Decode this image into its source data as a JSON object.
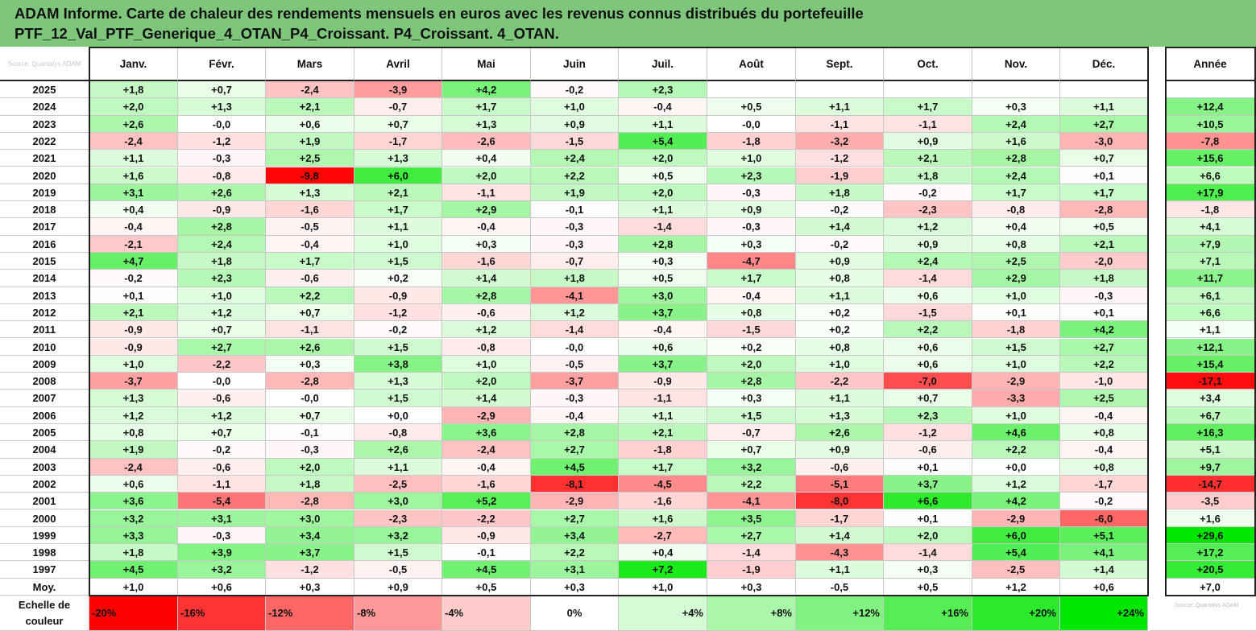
{
  "title": {
    "line1": "ADAM Informe. Carte de chaleur des rendements mensuels en euros avec les revenus connus distribués du portefeuille",
    "line2": "PTF_12_Val_PTF_Generique_4_OTAN_P4_Croissant. P4_Croissant. 4_OTAN."
  },
  "corner_text": "Source: Quantalys ADAM",
  "colors": {
    "title_bg": "#7dc67c",
    "negative": "#ff0000",
    "positive": "#00ff00",
    "neutral": "#ffffff"
  },
  "chart_data": {
    "type": "heatmap",
    "months": [
      "Janv.",
      "Févr.",
      "Mars",
      "Avril",
      "Mai",
      "Juin",
      "Juil.",
      "Août",
      "Sept.",
      "Oct.",
      "Nov.",
      "Déc."
    ],
    "annual_label": "Année",
    "rows": [
      {
        "year": "2025",
        "values": [
          "+1,8",
          "+0,7",
          "-2,4",
          "-3,9",
          "+4,2",
          "-0,2",
          "+2,3",
          "",
          "",
          "",
          "",
          ""
        ],
        "annual": ""
      },
      {
        "year": "2024",
        "values": [
          "+2,0",
          "+1,3",
          "+2,1",
          "-0,7",
          "+1,7",
          "+1,0",
          "-0,4",
          "+0,5",
          "+1,1",
          "+1,7",
          "+0,3",
          "+1,1"
        ],
        "annual": "+12,4"
      },
      {
        "year": "2023",
        "values": [
          "+2,6",
          "-0,0",
          "+0,6",
          "+0,7",
          "+1,3",
          "+0,9",
          "+1,1",
          "-0,0",
          "-1,1",
          "-1,1",
          "+2,4",
          "+2,7"
        ],
        "annual": "+10,5"
      },
      {
        "year": "2022",
        "values": [
          "-2,4",
          "-1,2",
          "+1,9",
          "-1,7",
          "-2,6",
          "-1,5",
          "+5,4",
          "-1,8",
          "-3,2",
          "+0,9",
          "+1,6",
          "-3,0"
        ],
        "annual": "-7,8"
      },
      {
        "year": "2021",
        "values": [
          "+1,1",
          "-0,3",
          "+2,5",
          "+1,3",
          "+0,4",
          "+2,4",
          "+2,0",
          "+1,0",
          "-1,2",
          "+2,1",
          "+2,8",
          "+0,7"
        ],
        "annual": "+15,6"
      },
      {
        "year": "2020",
        "values": [
          "+1,6",
          "-0,8",
          "-9,8",
          "+6,0",
          "+2,0",
          "+2,2",
          "+0,5",
          "+2,3",
          "-1,9",
          "+1,8",
          "+2,4",
          "+0,1"
        ],
        "annual": "+6,6"
      },
      {
        "year": "2019",
        "values": [
          "+3,1",
          "+2,6",
          "+1,3",
          "+2,1",
          "-1,1",
          "+1,9",
          "+2,0",
          "-0,3",
          "+1,8",
          "-0,2",
          "+1,7",
          "+1,7"
        ],
        "annual": "+17,9"
      },
      {
        "year": "2018",
        "values": [
          "+0,4",
          "-0,9",
          "-1,6",
          "+1,7",
          "+2,9",
          "-0,1",
          "+1,1",
          "+0,9",
          "-0,2",
          "-2,3",
          "-0,8",
          "-2,8"
        ],
        "annual": "-1,8"
      },
      {
        "year": "2017",
        "values": [
          "-0,4",
          "+2,8",
          "-0,5",
          "+1,1",
          "-0,4",
          "-0,3",
          "-1,4",
          "-0,3",
          "+1,4",
          "+1,2",
          "+0,4",
          "+0,5"
        ],
        "annual": "+4,1"
      },
      {
        "year": "2016",
        "values": [
          "-2,1",
          "+2,4",
          "-0,4",
          "+1,0",
          "+0,3",
          "-0,3",
          "+2,8",
          "+0,3",
          "-0,2",
          "+0,9",
          "+0,8",
          "+2,1"
        ],
        "annual": "+7,9"
      },
      {
        "year": "2015",
        "values": [
          "+4,7",
          "+1,8",
          "+1,7",
          "+1,5",
          "-1,6",
          "-0,7",
          "+0,3",
          "-4,7",
          "+0,9",
          "+2,4",
          "+2,5",
          "-2,0"
        ],
        "annual": "+7,1"
      },
      {
        "year": "2014",
        "values": [
          "-0,2",
          "+2,3",
          "-0,6",
          "+0,2",
          "+1,4",
          "+1,8",
          "+0,5",
          "+1,7",
          "+0,8",
          "-1,4",
          "+2,9",
          "+1,8"
        ],
        "annual": "+11,7"
      },
      {
        "year": "2013",
        "values": [
          "+0,1",
          "+1,0",
          "+2,2",
          "-0,9",
          "+2,8",
          "-4,1",
          "+3,0",
          "-0,4",
          "+1,1",
          "+0,6",
          "+1,0",
          "-0,3"
        ],
        "annual": "+6,1"
      },
      {
        "year": "2012",
        "values": [
          "+2,1",
          "+1,2",
          "+0,7",
          "-1,2",
          "-0,6",
          "+1,2",
          "+3,7",
          "+0,8",
          "+0,2",
          "-1,5",
          "+0,1",
          "+0,1"
        ],
        "annual": "+6,6"
      },
      {
        "year": "2011",
        "values": [
          "-0,9",
          "+0,7",
          "-1,1",
          "-0,2",
          "+1,2",
          "-1,4",
          "-0,4",
          "-1,5",
          "+0,2",
          "+2,2",
          "-1,8",
          "+4,2"
        ],
        "annual": "+1,1"
      },
      {
        "year": "2010",
        "values": [
          "-0,9",
          "+2,7",
          "+2,6",
          "+1,5",
          "-0,8",
          "-0,0",
          "+0,6",
          "+0,2",
          "+0,8",
          "+0,6",
          "+1,5",
          "+2,7"
        ],
        "annual": "+12,1"
      },
      {
        "year": "2009",
        "values": [
          "+1,0",
          "-2,2",
          "+0,3",
          "+3,8",
          "+1,0",
          "-0,5",
          "+3,7",
          "+2,0",
          "+1,0",
          "+0,6",
          "+1,0",
          "+2,2"
        ],
        "annual": "+15,4"
      },
      {
        "year": "2008",
        "values": [
          "-3,7",
          "-0,0",
          "-2,8",
          "+1,3",
          "+2,0",
          "-3,7",
          "-0,9",
          "+2,8",
          "-2,2",
          "-7,0",
          "-2,9",
          "-1,0"
        ],
        "annual": "-17,1"
      },
      {
        "year": "2007",
        "values": [
          "+1,3",
          "-0,6",
          "-0,0",
          "+1,5",
          "+1,4",
          "-0,3",
          "-1,1",
          "+0,3",
          "+1,1",
          "+0,7",
          "-3,3",
          "+2,5"
        ],
        "annual": "+3,4"
      },
      {
        "year": "2006",
        "values": [
          "+1,2",
          "+1,2",
          "+0,7",
          "+0,0",
          "-2,9",
          "-0,4",
          "+1,1",
          "+1,5",
          "+1,3",
          "+2,3",
          "+1,0",
          "-0,4"
        ],
        "annual": "+6,7"
      },
      {
        "year": "2005",
        "values": [
          "+0,8",
          "+0,7",
          "-0,1",
          "-0,8",
          "+3,6",
          "+2,8",
          "+2,1",
          "-0,7",
          "+2,6",
          "-1,2",
          "+4,6",
          "+0,8"
        ],
        "annual": "+16,3"
      },
      {
        "year": "2004",
        "values": [
          "+1,9",
          "-0,2",
          "-0,3",
          "+2,6",
          "-2,4",
          "+2,7",
          "-1,8",
          "+0,7",
          "+0,9",
          "-0,6",
          "+2,2",
          "-0,4"
        ],
        "annual": "+5,1"
      },
      {
        "year": "2003",
        "values": [
          "-2,4",
          "-0,6",
          "+2,0",
          "+1,1",
          "-0,4",
          "+4,5",
          "+1,7",
          "+3,2",
          "-0,6",
          "+0,1",
          "+0,0",
          "+0,8"
        ],
        "annual": "+9,7"
      },
      {
        "year": "2002",
        "values": [
          "+0,6",
          "-1,1",
          "+1,8",
          "-2,5",
          "-1,6",
          "-8,1",
          "-4,5",
          "+2,2",
          "-5,1",
          "+3,7",
          "+1,2",
          "-1,7"
        ],
        "annual": "-14,7"
      },
      {
        "year": "2001",
        "values": [
          "+3,6",
          "-5,4",
          "-2,8",
          "+3,0",
          "+5,2",
          "-2,9",
          "-1,6",
          "-4,1",
          "-8,0",
          "+6,6",
          "+4,2",
          "-0,2"
        ],
        "annual": "-3,5"
      },
      {
        "year": "2000",
        "values": [
          "+3,2",
          "+3,1",
          "+3,0",
          "-2,3",
          "-2,2",
          "+2,7",
          "+1,6",
          "+3,5",
          "-1,7",
          "+0,1",
          "-2,9",
          "-6,0"
        ],
        "annual": "+1,6"
      },
      {
        "year": "1999",
        "values": [
          "+3,3",
          "-0,3",
          "+3,4",
          "+3,2",
          "-0,9",
          "+3,4",
          "-2,7",
          "+2,7",
          "+1,4",
          "+2,0",
          "+6,0",
          "+5,1"
        ],
        "annual": "+29,6"
      },
      {
        "year": "1998",
        "values": [
          "+1,8",
          "+3,9",
          "+3,7",
          "+1,5",
          "-0,1",
          "+2,2",
          "+0,4",
          "-1,4",
          "-4,3",
          "-1,4",
          "+5,4",
          "+4,1"
        ],
        "annual": "+17,2"
      },
      {
        "year": "1997",
        "values": [
          "+4,5",
          "+3,2",
          "-1,2",
          "-0,5",
          "+4,5",
          "+3,1",
          "+7,2",
          "-1,9",
          "+1,1",
          "+0,3",
          "-2,5",
          "+1,4"
        ],
        "annual": "+20,5"
      }
    ],
    "average": {
      "label": "Moy.",
      "values": [
        "+1,0",
        "+0,6",
        "+0,3",
        "+0,9",
        "+0,5",
        "+0,3",
        "+1,0",
        "+0,3",
        "-0,5",
        "+0,5",
        "+1,2",
        "+0,6"
      ],
      "annual": "+7,0"
    },
    "scale": {
      "label": "Echelle de couleur",
      "steps": [
        {
          "text": "-20%",
          "value": -20
        },
        {
          "text": "-16%",
          "value": -16
        },
        {
          "text": "-12%",
          "value": -12
        },
        {
          "text": "-8%",
          "value": -8
        },
        {
          "text": "-4%",
          "value": -4
        },
        {
          "text": "0%",
          "value": 0
        },
        {
          "text": "+4%",
          "value": 4
        },
        {
          "text": "+8%",
          "value": 8
        },
        {
          "text": "+12%",
          "value": 12
        },
        {
          "text": "+16%",
          "value": 16
        },
        {
          "text": "+20%",
          "value": 20
        },
        {
          "text": "+24%",
          "value": 24
        }
      ],
      "footnote": "Source: Quantalys ADAM"
    }
  }
}
